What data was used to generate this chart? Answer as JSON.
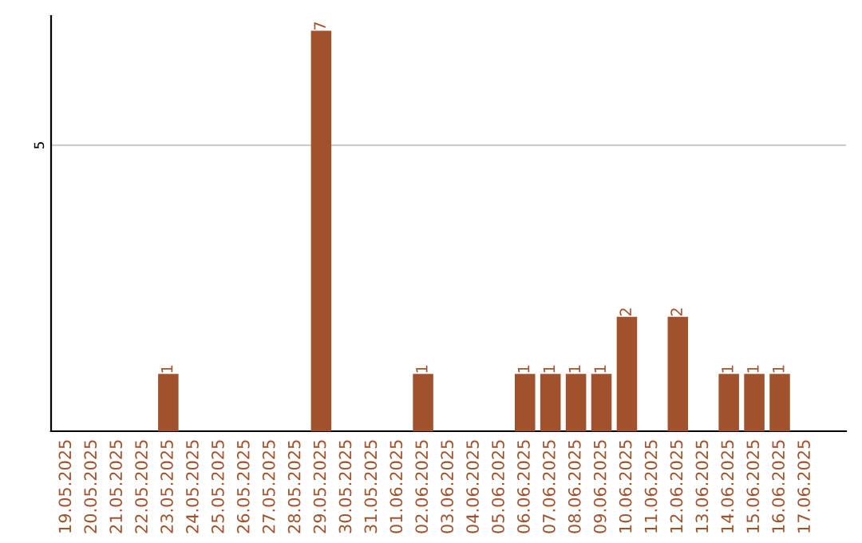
{
  "chart_data": {
    "type": "bar",
    "categories": [
      "19.05.2025",
      "20.05.2025",
      "21.05.2025",
      "22.05.2025",
      "23.05.2025",
      "24.05.2025",
      "25.05.2025",
      "26.05.2025",
      "27.05.2025",
      "28.05.2025",
      "29.05.2025",
      "30.05.2025",
      "31.05.2025",
      "01.06.2025",
      "02.06.2025",
      "03.06.2025",
      "04.06.2025",
      "05.06.2025",
      "06.06.2025",
      "07.06.2025",
      "08.06.2025",
      "09.06.2025",
      "10.06.2025",
      "11.06.2025",
      "12.06.2025",
      "13.06.2025",
      "14.06.2025",
      "15.06.2025",
      "16.06.2025",
      "17.06.2025"
    ],
    "values": [
      0,
      0,
      0,
      0,
      1,
      0,
      0,
      0,
      0,
      0,
      7,
      0,
      0,
      0,
      1,
      0,
      0,
      0,
      1,
      1,
      1,
      1,
      2,
      0,
      2,
      0,
      1,
      1,
      1,
      0
    ],
    "value_labels": [
      null,
      null,
      null,
      null,
      "1",
      null,
      null,
      null,
      null,
      null,
      "7",
      null,
      null,
      null,
      "1",
      null,
      null,
      null,
      "1",
      "1",
      "1",
      "1",
      "2",
      null,
      "2",
      null,
      "1",
      "1",
      "1",
      null
    ],
    "color": "#a0522d",
    "ylim": [
      0,
      7.26
    ],
    "yticks": [
      5
    ],
    "grid": "y",
    "legend": false
  }
}
